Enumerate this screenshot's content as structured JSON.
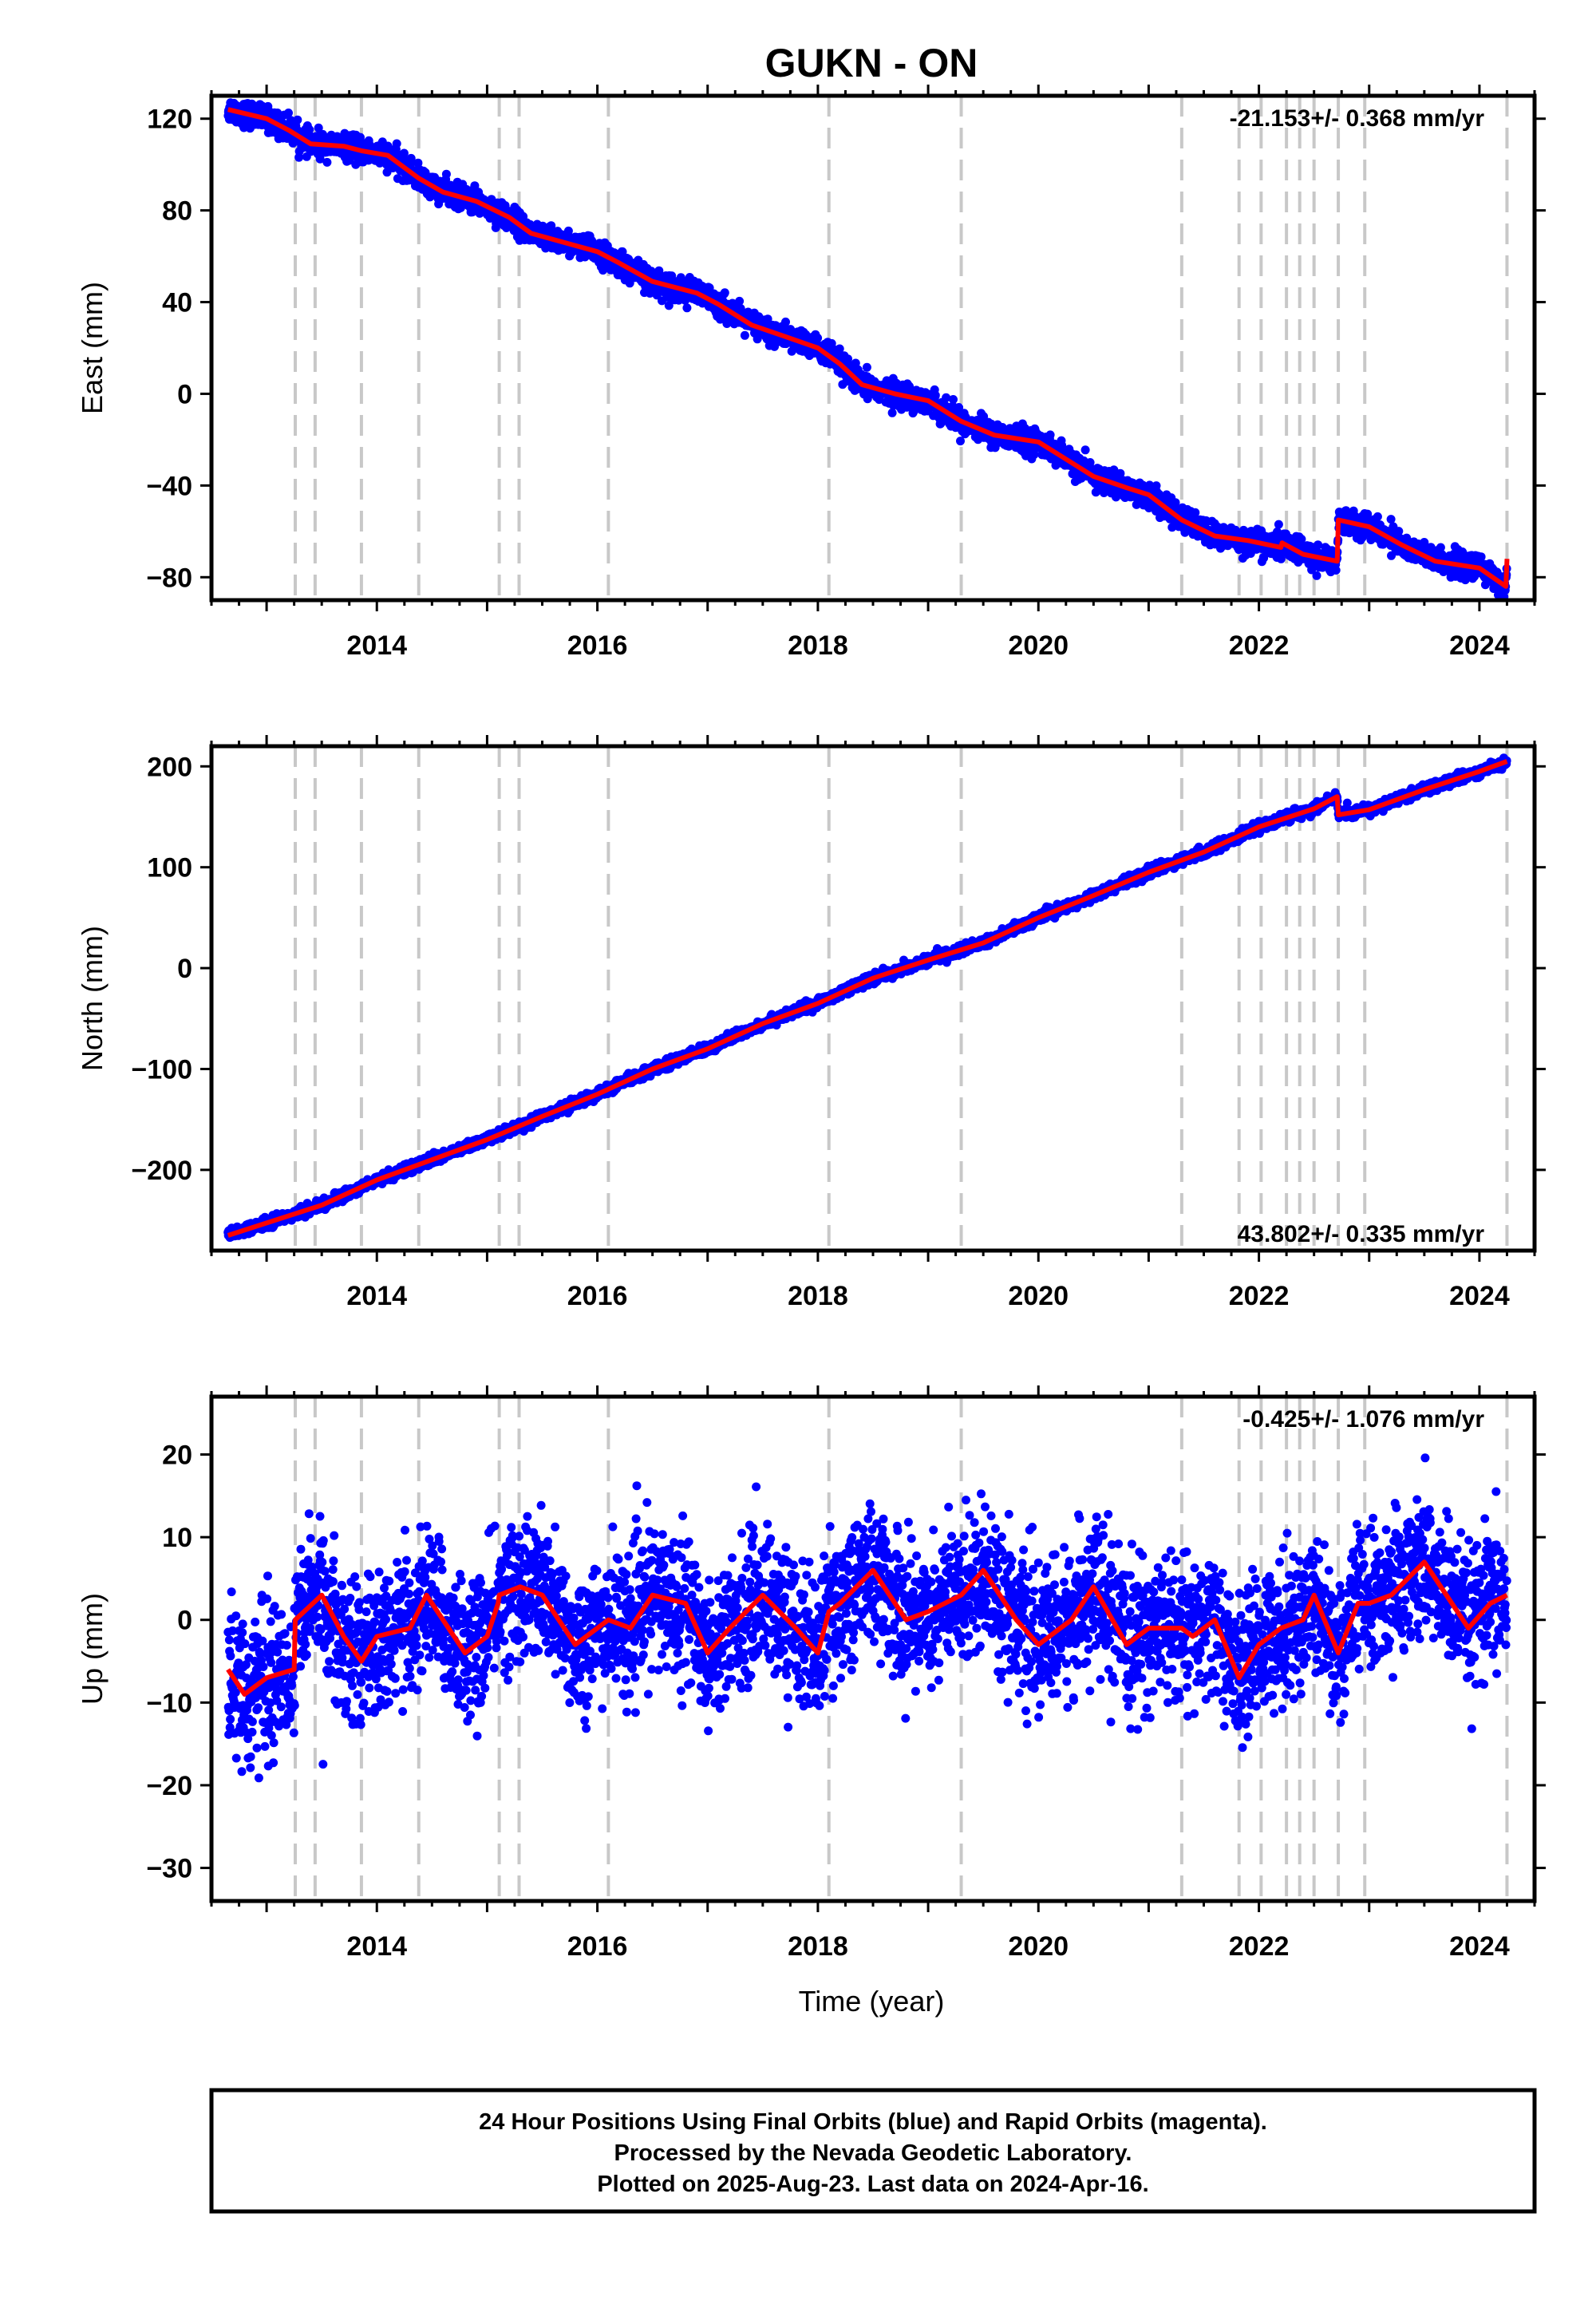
{
  "title": "GUKN - ON",
  "xlabel": "Time (year)",
  "caption": [
    "24 Hour Positions Using Final Orbits (blue) and Rapid Orbits (magenta).",
    "Processed by the Nevada Geodetic Laboratory.",
    "Plotted on 2025-Aug-23. Last data on 2024-Apr-16."
  ],
  "colors": {
    "observations": "#0000ff",
    "model": "#ff0000",
    "event_lines": "#c8c8c8"
  },
  "chart_data": [
    {
      "type": "scatter",
      "component": "East",
      "ylabel": "East (mm)",
      "rate_text": "-21.153+/- 0.368 mm/yr",
      "xlim": [
        2012.5,
        2024.5
      ],
      "ylim": [
        -90,
        130
      ],
      "xticks": [
        2014,
        2016,
        2018,
        2020,
        2022,
        2024
      ],
      "yticks": [
        120,
        80,
        40,
        0,
        -40,
        -80
      ],
      "event_lines": [
        2013.26,
        2013.44,
        2013.86,
        2014.38,
        2015.11,
        2015.29,
        2016.1,
        2018.1,
        2019.3,
        2021.3,
        2021.82,
        2022.02,
        2022.25,
        2022.37,
        2022.5,
        2022.72,
        2022.96,
        2024.25
      ],
      "series": [
        {
          "role": "model",
          "x": [
            2012.65,
            2013.0,
            2013.2,
            2013.4,
            2013.7,
            2013.86,
            2014.1,
            2014.38,
            2014.6,
            2014.9,
            2015.2,
            2015.4,
            2015.7,
            2016.0,
            2016.2,
            2016.5,
            2016.9,
            2017.1,
            2017.4,
            2017.7,
            2018.0,
            2018.2,
            2018.4,
            2018.7,
            2019.0,
            2019.3,
            2019.6,
            2020.0,
            2020.2,
            2020.5,
            2020.8,
            2021.0,
            2021.3,
            2021.6,
            2021.9,
            2022.2,
            2022.21,
            2022.4,
            2022.71,
            2022.72,
            2023.0,
            2023.3,
            2023.6,
            2024.0,
            2024.24,
            2024.25
          ],
          "y": [
            124,
            120,
            115,
            109,
            108,
            106,
            104,
            94,
            88,
            84,
            77,
            70,
            66,
            62,
            57,
            49,
            44,
            39,
            30,
            25,
            20,
            13,
            4,
            0,
            -3,
            -12,
            -18,
            -21,
            -27,
            -36,
            -41,
            -44,
            -55,
            -62,
            -64,
            -67,
            -65,
            -70,
            -73,
            -55,
            -58,
            -66,
            -73,
            -76,
            -84,
            -72
          ]
        },
        {
          "role": "observations",
          "scatter_mm": 2.6,
          "days": 4200
        }
      ]
    },
    {
      "type": "scatter",
      "component": "North",
      "ylabel": "North (mm)",
      "rate_text": "43.802+/- 0.335 mm/yr",
      "xlim": [
        2012.5,
        2024.5
      ],
      "ylim": [
        -280,
        220
      ],
      "xticks": [
        2014,
        2016,
        2018,
        2020,
        2022,
        2024
      ],
      "yticks": [
        200,
        100,
        0,
        -100,
        -200
      ],
      "event_lines": [
        2013.26,
        2013.44,
        2013.86,
        2014.38,
        2015.11,
        2015.29,
        2016.1,
        2018.1,
        2019.3,
        2021.3,
        2021.82,
        2022.02,
        2022.25,
        2022.37,
        2022.5,
        2022.72,
        2022.96,
        2024.25
      ],
      "series": [
        {
          "role": "model",
          "x": [
            2012.65,
            2013.5,
            2014.0,
            2014.5,
            2015.0,
            2015.5,
            2016.0,
            2016.5,
            2017.0,
            2017.5,
            2018.0,
            2018.5,
            2019.0,
            2019.5,
            2020.0,
            2020.5,
            2021.0,
            2021.5,
            2022.0,
            2022.5,
            2022.71,
            2022.72,
            2023.0,
            2023.5,
            2024.0,
            2024.25
          ],
          "y": [
            -265,
            -235,
            -210,
            -190,
            -170,
            -147,
            -125,
            -100,
            -80,
            -55,
            -35,
            -10,
            8,
            25,
            50,
            72,
            95,
            115,
            140,
            158,
            170,
            152,
            157,
            177,
            195,
            205
          ]
        },
        {
          "role": "observations",
          "scatter_mm": 2.4,
          "days": 4200
        }
      ]
    },
    {
      "type": "scatter",
      "component": "Up",
      "ylabel": "Up (mm)",
      "rate_text": "-0.425+/- 1.076 mm/yr",
      "xlim": [
        2012.5,
        2024.5
      ],
      "ylim": [
        -34,
        27
      ],
      "xticks": [
        2014,
        2016,
        2018,
        2020,
        2022,
        2024
      ],
      "yticks": [
        20,
        10,
        0,
        -10,
        -20,
        -30
      ],
      "event_lines": [
        2013.26,
        2013.44,
        2013.86,
        2014.38,
        2015.11,
        2015.29,
        2016.1,
        2018.1,
        2019.3,
        2021.3,
        2021.82,
        2022.02,
        2022.25,
        2022.37,
        2022.5,
        2022.72,
        2022.96,
        2024.25
      ],
      "series": [
        {
          "role": "model",
          "x": [
            2012.65,
            2012.8,
            2013.0,
            2013.25,
            2013.26,
            2013.5,
            2013.7,
            2013.86,
            2014.0,
            2014.3,
            2014.45,
            2014.6,
            2014.8,
            2015.0,
            2015.1,
            2015.11,
            2015.3,
            2015.5,
            2015.8,
            2016.1,
            2016.3,
            2016.5,
            2016.8,
            2017.0,
            2017.2,
            2017.5,
            2017.8,
            2018.0,
            2018.1,
            2018.2,
            2018.5,
            2018.8,
            2019.0,
            2019.3,
            2019.5,
            2019.8,
            2020.0,
            2020.3,
            2020.5,
            2020.8,
            2021.0,
            2021.3,
            2021.4,
            2021.6,
            2021.82,
            2022.0,
            2022.2,
            2022.4,
            2022.5,
            2022.72,
            2022.9,
            2023.0,
            2023.2,
            2023.5,
            2023.7,
            2023.9,
            2024.1,
            2024.25
          ],
          "y": [
            -6,
            -9,
            -7,
            -6,
            0,
            3,
            -2,
            -5,
            -2,
            -1,
            3,
            0,
            -4,
            -2,
            2,
            3,
            4,
            3,
            -3,
            0,
            -1,
            3,
            2,
            -4,
            -1,
            3,
            -1,
            -4,
            1,
            2,
            6,
            0,
            1,
            3,
            6,
            0,
            -3,
            0,
            4,
            -3,
            -1,
            -1,
            -2,
            0,
            -7,
            -3,
            -1,
            0,
            3,
            -4,
            2,
            2,
            3,
            7,
            3,
            -1,
            2,
            3
          ]
        },
        {
          "role": "observations",
          "scatter_mm": 4.2,
          "days": 4200
        }
      ]
    }
  ]
}
